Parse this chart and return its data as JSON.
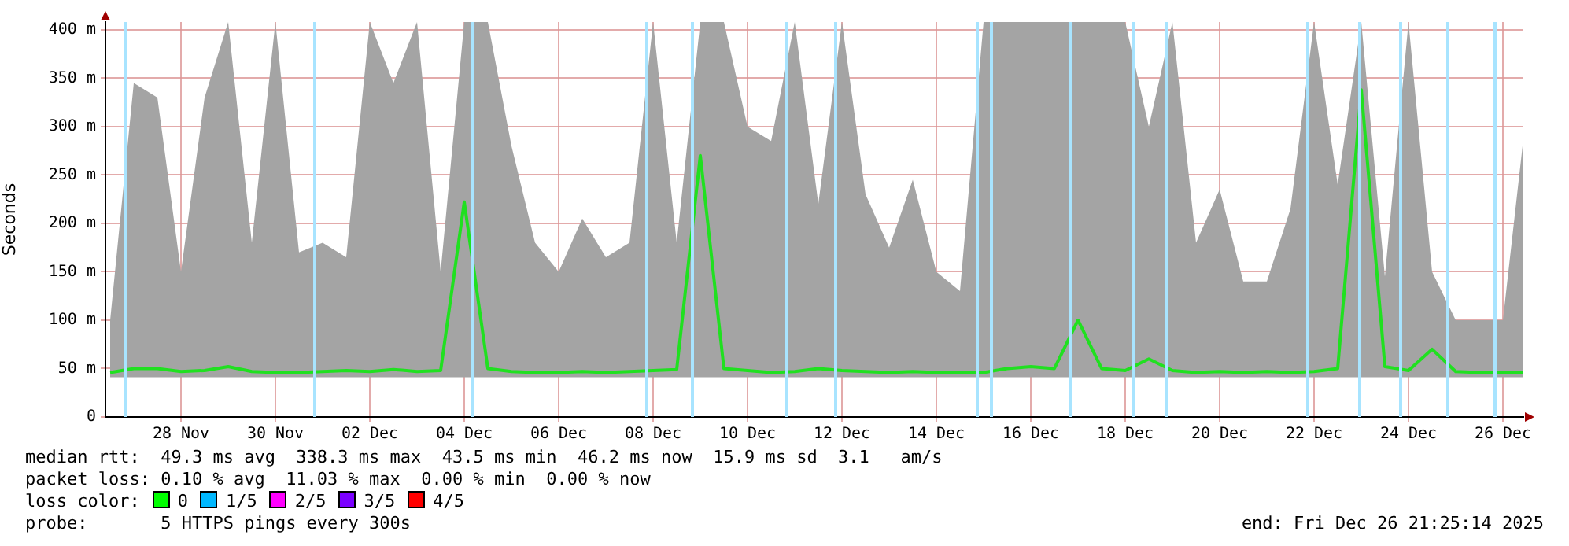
{
  "chart_data": {
    "type": "line",
    "ylabel": "Seconds",
    "x": [
      "2025-11-26T12:00",
      "2025-11-27T00:00",
      "2025-11-27T12:00",
      "2025-11-28T00:00",
      "2025-11-28T12:00",
      "2025-11-29T00:00",
      "2025-11-29T12:00",
      "2025-11-30T00:00",
      "2025-11-30T12:00",
      "2025-12-01T00:00",
      "2025-12-01T12:00",
      "2025-12-02T00:00",
      "2025-12-02T12:00",
      "2025-12-03T00:00",
      "2025-12-03T12:00",
      "2025-12-04T00:00",
      "2025-12-04T12:00",
      "2025-12-05T00:00",
      "2025-12-05T12:00",
      "2025-12-06T00:00",
      "2025-12-06T12:00",
      "2025-12-07T00:00",
      "2025-12-07T12:00",
      "2025-12-08T00:00",
      "2025-12-08T12:00",
      "2025-12-09T00:00",
      "2025-12-09T12:00",
      "2025-12-10T00:00",
      "2025-12-10T12:00",
      "2025-12-11T00:00",
      "2025-12-11T12:00",
      "2025-12-12T00:00",
      "2025-12-12T12:00",
      "2025-12-13T00:00",
      "2025-12-13T12:00",
      "2025-12-14T00:00",
      "2025-12-14T12:00",
      "2025-12-15T00:00",
      "2025-12-15T12:00",
      "2025-12-16T00:00",
      "2025-12-16T12:00",
      "2025-12-17T00:00",
      "2025-12-17T12:00",
      "2025-12-18T00:00",
      "2025-12-18T12:00",
      "2025-12-19T00:00",
      "2025-12-19T12:00",
      "2025-12-20T00:00",
      "2025-12-20T12:00",
      "2025-12-21T00:00",
      "2025-12-21T12:00",
      "2025-12-22T00:00",
      "2025-12-22T12:00",
      "2025-12-23T00:00",
      "2025-12-23T12:00",
      "2025-12-24T00:00",
      "2025-12-24T12:00",
      "2025-12-25T00:00",
      "2025-12-25T12:00",
      "2025-12-26T00:00",
      "2025-12-26T10:00"
    ],
    "series": [
      {
        "color": "#20e020",
        "values": [
          46,
          50,
          50,
          47,
          48,
          52,
          47,
          46,
          46,
          47,
          48,
          47,
          49,
          47,
          48,
          222,
          50,
          47,
          46,
          46,
          47,
          46,
          47,
          48,
          49,
          270,
          50,
          48,
          46,
          47,
          50,
          48,
          47,
          46,
          47,
          46,
          46,
          46,
          50,
          52,
          50,
          100,
          50,
          48,
          60,
          48,
          46,
          47,
          46,
          47,
          46,
          47,
          50,
          338,
          52,
          48,
          70,
          47,
          46,
          46,
          46
        ],
        "lower": [
          41,
          41,
          41,
          41,
          41,
          41,
          41,
          41,
          41,
          41,
          41,
          41,
          41,
          41,
          41,
          41,
          41,
          41,
          41,
          41,
          41,
          41,
          41,
          41,
          41,
          41,
          41,
          41,
          41,
          41,
          41,
          41,
          41,
          41,
          41,
          41,
          41,
          41,
          41,
          41,
          41,
          41,
          41,
          41,
          41,
          41,
          41,
          41,
          41,
          41,
          41,
          41,
          41,
          41,
          41,
          41,
          41,
          41,
          41,
          41,
          41
        ],
        "upper": [
          100,
          345,
          330,
          150,
          330,
          408,
          180,
          408,
          170,
          180,
          165,
          408,
          345,
          408,
          150,
          408,
          408,
          280,
          180,
          150,
          205,
          165,
          180,
          408,
          180,
          408,
          408,
          300,
          285,
          408,
          220,
          408,
          230,
          175,
          245,
          150,
          130,
          408,
          408,
          408,
          408,
          408,
          408,
          408,
          300,
          408,
          180,
          235,
          140,
          140,
          215,
          408,
          240,
          408,
          145,
          408,
          150,
          100,
          100,
          100,
          280
        ]
      }
    ],
    "xlim": [
      "2025-11-26T09:36",
      "2025-12-26T10:24"
    ],
    "xticks": [
      {
        "value": "2025-11-28",
        "label": "28 Nov"
      },
      {
        "value": "2025-11-30",
        "label": "30 Nov"
      },
      {
        "value": "2025-12-02",
        "label": "02 Dec"
      },
      {
        "value": "2025-12-04",
        "label": "04 Dec"
      },
      {
        "value": "2025-12-06",
        "label": "06 Dec"
      },
      {
        "value": "2025-12-08",
        "label": "08 Dec"
      },
      {
        "value": "2025-12-10",
        "label": "10 Dec"
      },
      {
        "value": "2025-12-12",
        "label": "12 Dec"
      },
      {
        "value": "2025-12-14",
        "label": "14 Dec"
      },
      {
        "value": "2025-12-16",
        "label": "16 Dec"
      },
      {
        "value": "2025-12-18",
        "label": "18 Dec"
      },
      {
        "value": "2025-12-20",
        "label": "20 Dec"
      },
      {
        "value": "2025-12-22",
        "label": "22 Dec"
      },
      {
        "value": "2025-12-24",
        "label": "24 Dec"
      },
      {
        "value": "2025-12-26",
        "label": "26 Dec"
      }
    ],
    "ylim": [
      0,
      408
    ],
    "yticks": [
      0,
      {
        "value": 50,
        "label": "50 m"
      },
      {
        "value": 100,
        "label": "100 m"
      },
      {
        "value": 150,
        "label": "150 m"
      },
      {
        "value": 200,
        "label": "200 m"
      },
      {
        "value": 250,
        "label": "250 m"
      },
      {
        "value": 300,
        "label": "300 m"
      },
      {
        "value": 350,
        "label": "350 m"
      },
      {
        "value": 400,
        "label": "400 m"
      }
    ],
    "ref_lines": [
      {
        "axis": "x",
        "value": "2025-11-26T20:00",
        "color": "#a8e4ff"
      },
      {
        "axis": "x",
        "value": "2025-11-30T20:00",
        "color": "#a8e4ff"
      },
      {
        "axis": "x",
        "value": "2025-12-04T04:00",
        "color": "#a8e4ff"
      },
      {
        "axis": "x",
        "value": "2025-12-07T20:48",
        "color": "#a8e4ff"
      },
      {
        "axis": "x",
        "value": "2025-12-08T20:00",
        "color": "#a8e4ff"
      },
      {
        "axis": "x",
        "value": "2025-12-10T20:00",
        "color": "#a8e4ff"
      },
      {
        "axis": "x",
        "value": "2025-12-11T20:48",
        "color": "#a8e4ff"
      },
      {
        "axis": "x",
        "value": "2025-12-14T20:48",
        "color": "#a8e4ff"
      },
      {
        "axis": "x",
        "value": "2025-12-15T04:00",
        "color": "#a8e4ff"
      },
      {
        "axis": "x",
        "value": "2025-12-16T20:00",
        "color": "#a8e4ff"
      },
      {
        "axis": "x",
        "value": "2025-12-18T04:00",
        "color": "#a8e4ff"
      },
      {
        "axis": "x",
        "value": "2025-12-18T20:48",
        "color": "#a8e4ff"
      },
      {
        "axis": "x",
        "value": "2025-12-21T20:48",
        "color": "#a8e4ff"
      },
      {
        "axis": "x",
        "value": "2025-12-22T23:12",
        "color": "#a8e4ff"
      },
      {
        "axis": "x",
        "value": "2025-12-23T20:00",
        "color": "#a8e4ff"
      },
      {
        "axis": "x",
        "value": "2025-12-24T20:00",
        "color": "#a8e4ff"
      },
      {
        "axis": "x",
        "value": "2025-12-25T20:00",
        "color": "#a8e4ff"
      }
    ],
    "grid": true,
    "legend": false,
    "annotations": [
      "median rtt:  49.3 ms avg  338.3 ms max  43.5 ms min  46.2 ms now  15.9 ms sd  3.1   am/s",
      "packet loss: 0.10 % avg  11.03 % max  0.00 % min  0.00 % now",
      "loss color:",
      "0",
      "1/5",
      "2/5",
      "3/5",
      "4/5",
      "probe:       5 HTTPS pings every 300s",
      "end: Fri Dec 26 21:25:14 2025"
    ]
  }
}
